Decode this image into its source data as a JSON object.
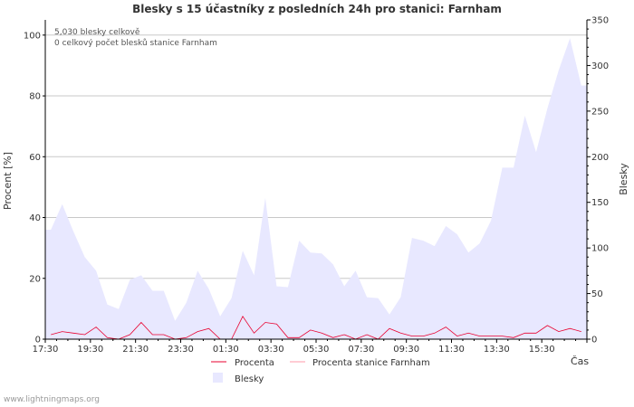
{
  "chart_data": {
    "type": "area",
    "title": "Blesky s 15 účastníky z posledních 24h pro stanici: Farnham",
    "ylabel": "Procent   [%]",
    "y2label": "Blesky",
    "xlabel": "Čas",
    "ylim": [
      0,
      105
    ],
    "y2lim": [
      0,
      350
    ],
    "yticks": [
      0,
      20,
      40,
      60,
      80,
      100
    ],
    "y2ticks": [
      0,
      50,
      100,
      150,
      200,
      250,
      300,
      350
    ],
    "xticks": [
      "17:30",
      "19:30",
      "21:30",
      "23:30",
      "01:30",
      "03:30",
      "05:30",
      "07:30",
      "09:30",
      "11:30",
      "13:30",
      "15:30"
    ],
    "annotations": [
      "5,030 blesky celkově",
      "0 celkový počet blesků stanice Farnham"
    ],
    "legend": {
      "procenta": "Procenta",
      "procenta_stanice": "Procenta stanice Farnham",
      "blesky": "Blesky"
    },
    "colors": {
      "procenta": "#e8002f",
      "procenta_stanice": "#ff9aa8",
      "blesky_fill": "#e8e8ff",
      "grid": "#c8c8c8",
      "axis": "#000000"
    },
    "series": [
      {
        "name": "Blesky",
        "axis": "right",
        "values": [
          120,
          148,
          118,
          90,
          75,
          38,
          33,
          65,
          70,
          53,
          53,
          20,
          40,
          75,
          55,
          25,
          45,
          97,
          70,
          155,
          58,
          57,
          108,
          95,
          94,
          82,
          58,
          75,
          46,
          45,
          27,
          46,
          111,
          108,
          102,
          124,
          115,
          95,
          105,
          130,
          188,
          188,
          245,
          205,
          253,
          295,
          330,
          278
        ]
      },
      {
        "name": "Procenta",
        "axis": "left",
        "values": [
          1.5,
          2.5,
          2.0,
          1.5,
          4.0,
          0.5,
          0.0,
          1.5,
          5.5,
          1.5,
          1.5,
          0.0,
          0.5,
          2.5,
          3.5,
          0.0,
          0.0,
          7.5,
          2.0,
          5.5,
          5.0,
          0.5,
          0.5,
          3.0,
          2.0,
          0.5,
          1.5,
          0.0,
          1.5,
          0.0,
          3.5,
          2.0,
          1.0,
          1.0,
          2.0,
          4.0,
          1.0,
          2.0,
          1.0,
          1.0,
          1.0,
          0.5,
          2.0,
          2.0,
          4.5,
          2.5,
          3.5,
          2.5
        ]
      },
      {
        "name": "Procenta stanice Farnham",
        "axis": "left",
        "values": []
      }
    ]
  },
  "footer": "www.lightningmaps.org"
}
